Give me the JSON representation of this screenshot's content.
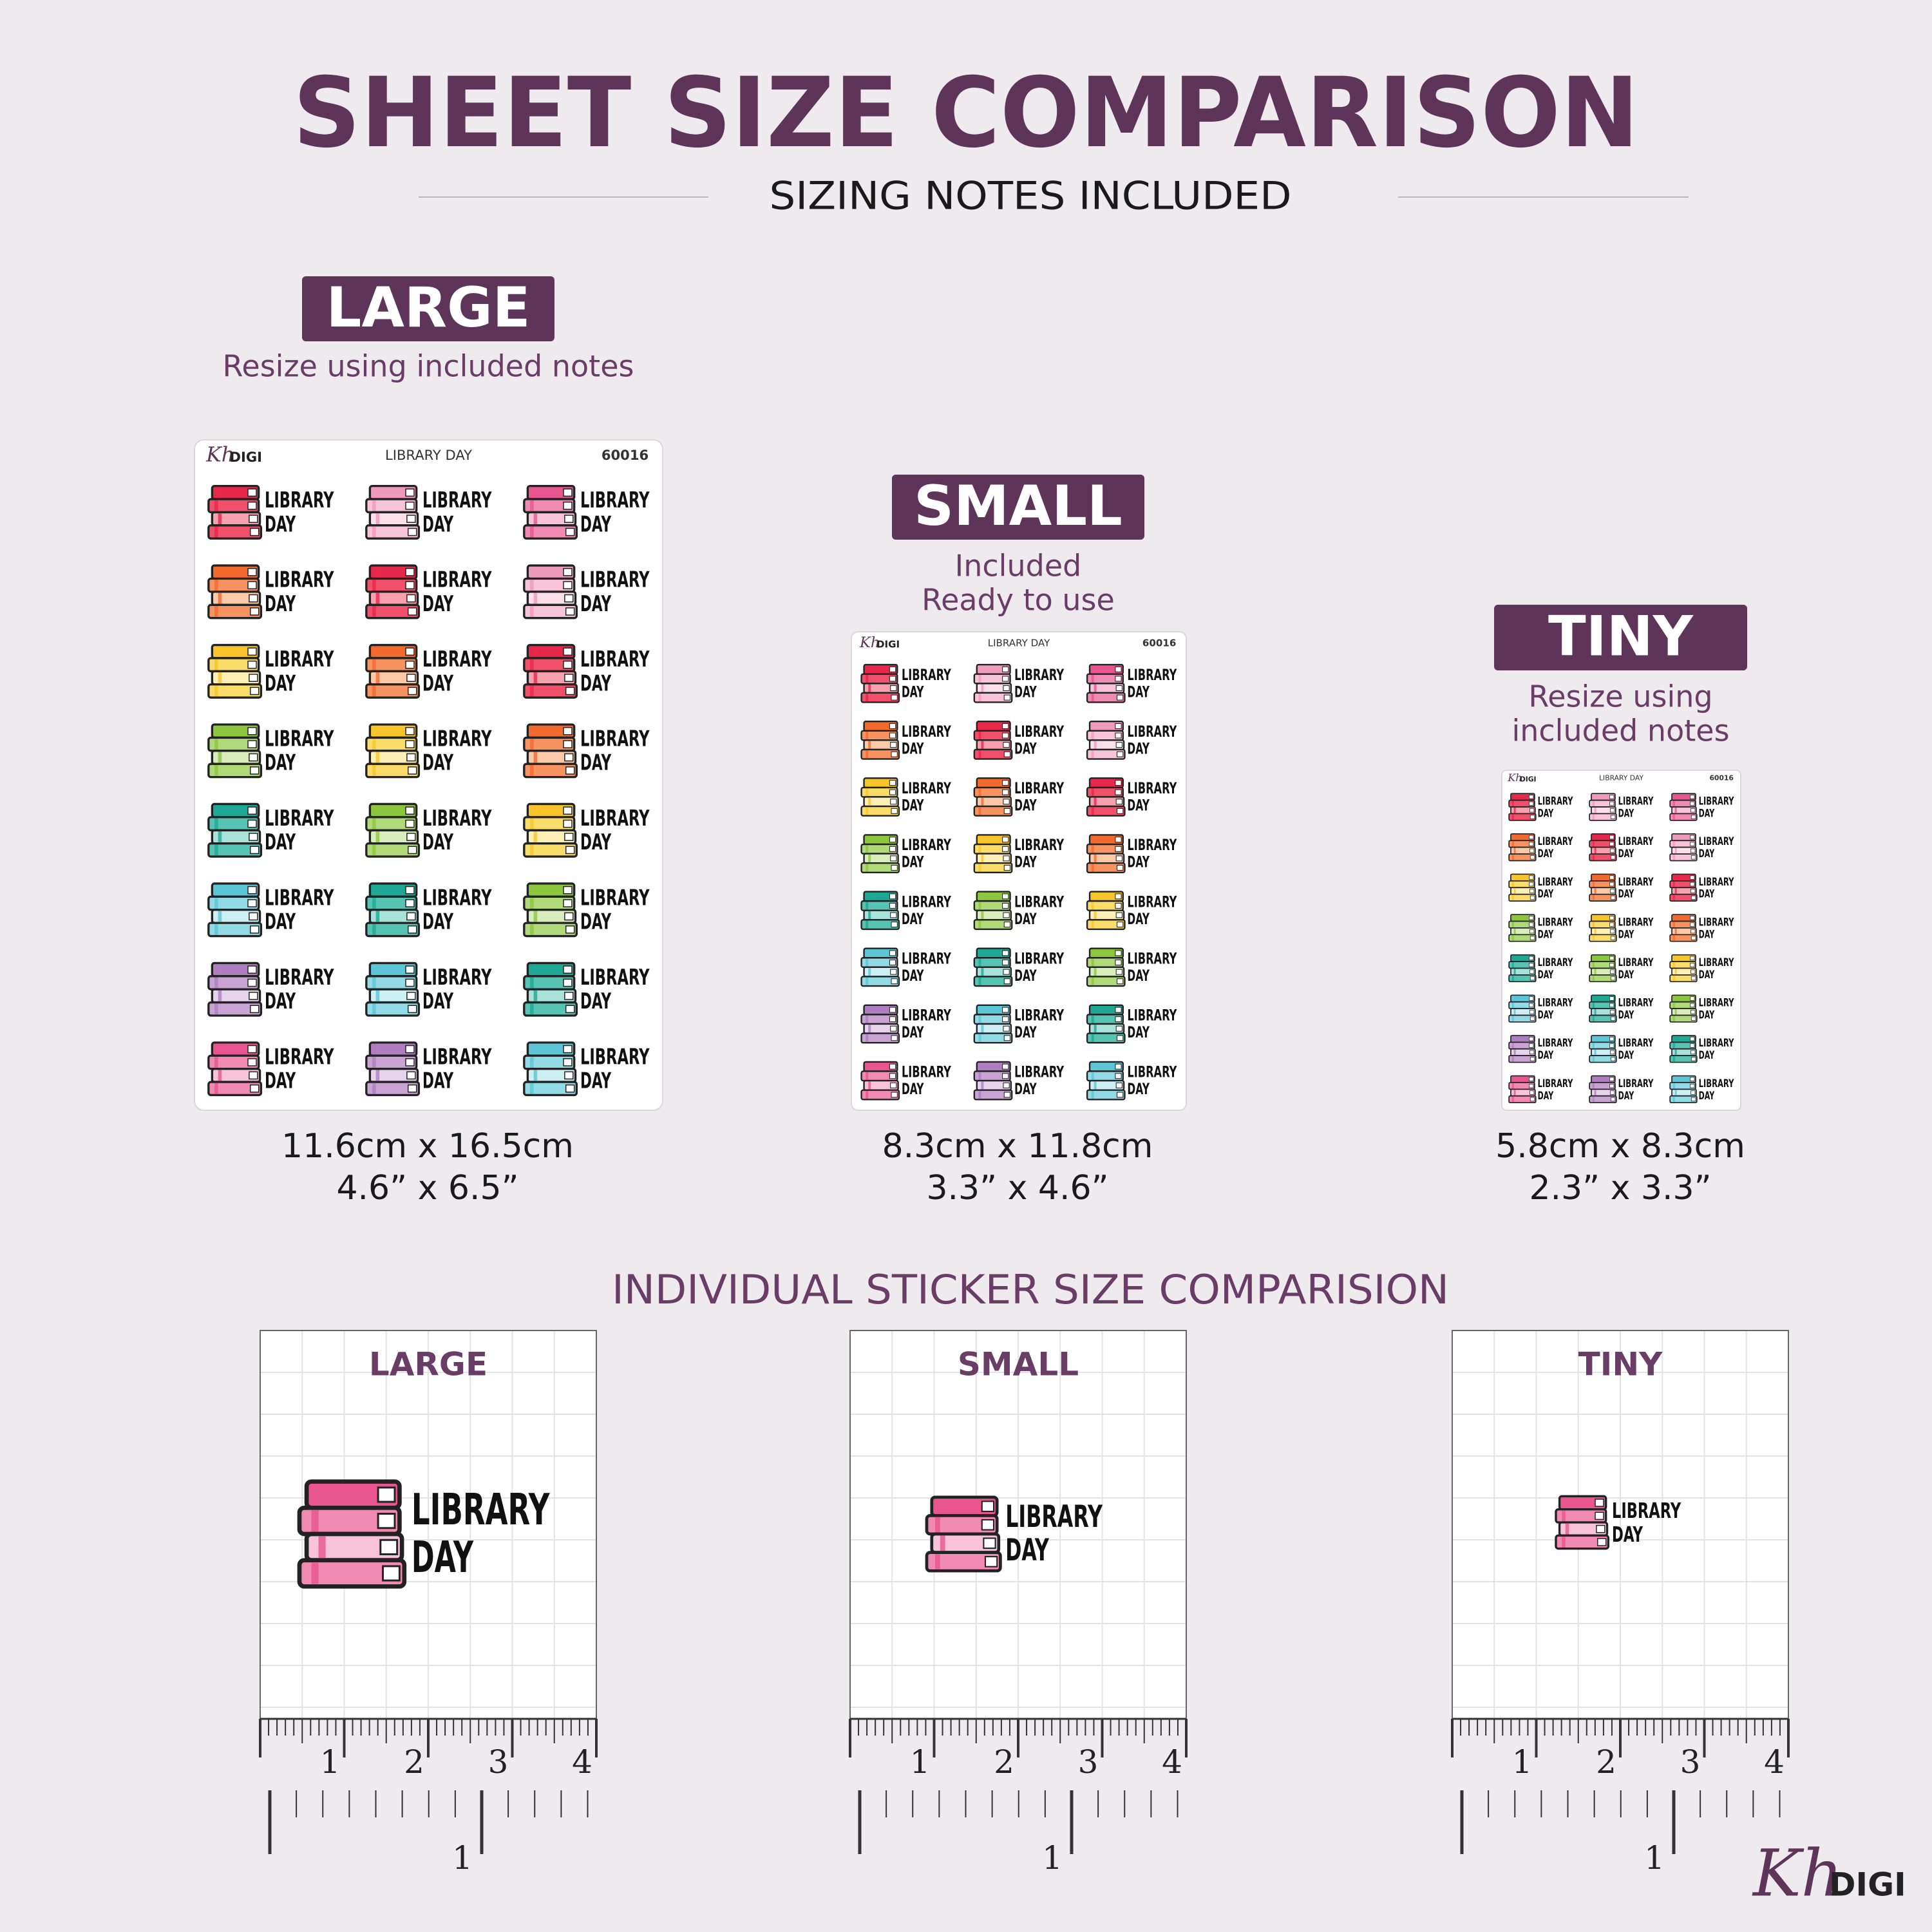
{
  "header": {
    "title": "SHEET SIZE COMPARISON",
    "subtitle": "SIZING NOTES INCLUDED"
  },
  "sheets": [
    {
      "badge": "LARGE",
      "note": [
        "Resize using included notes"
      ],
      "size_cm": "11.6cm x 16.5cm",
      "size_in": "4.6” x 6.5”"
    },
    {
      "badge": "SMALL",
      "note": [
        "Included",
        "Ready to use"
      ],
      "size_cm": "8.3cm x 11.8cm",
      "size_in": "3.3” x 4.6”"
    },
    {
      "badge": "TINY",
      "note": [
        "Resize using",
        "included notes"
      ],
      "size_cm": "5.8cm x 8.3cm",
      "size_in": "2.3” x 3.3”"
    }
  ],
  "sheet_header": {
    "brand": "Kh",
    "brand_suffix": "DIGI",
    "title": "LIBRARY DAY",
    "code": "60016"
  },
  "sticker": {
    "line1": "LIBRARY",
    "line2": "DAY"
  },
  "comparison": {
    "title": "INDIVIDUAL STICKER SIZE COMPARISION"
  },
  "ruler": {
    "cm_labels": [
      "1",
      "2",
      "3",
      "4"
    ],
    "inch_label": "1"
  },
  "logo": {
    "script": "Kh",
    "text": "DIGI"
  }
}
